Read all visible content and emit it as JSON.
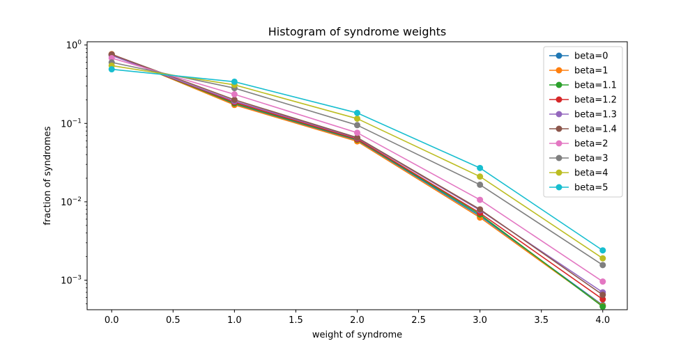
{
  "chart_data": {
    "type": "line",
    "title": "Histogram of syndrome weights",
    "xlabel": "weight of syndrome",
    "ylabel": "fraction of syndromes",
    "y_scale": "log",
    "xlim": [
      -0.2,
      4.2
    ],
    "ylim": [
      0.00042,
      1.1
    ],
    "grid": false,
    "legend_position": "top-right",
    "x_ticks": [
      0.0,
      0.5,
      1.0,
      1.5,
      2.0,
      2.5,
      3.0,
      3.5,
      4.0
    ],
    "x_tick_labels": [
      "0.0",
      "0.5",
      "1.0",
      "1.5",
      "2.0",
      "2.5",
      "3.0",
      "3.5",
      "4.0"
    ],
    "y_ticks": [
      {
        "value": 0.001,
        "base": "10",
        "exp": "−3"
      },
      {
        "value": 0.01,
        "base": "10",
        "exp": "−2"
      },
      {
        "value": 0.1,
        "base": "10",
        "exp": "−1"
      },
      {
        "value": 1,
        "base": "10",
        "exp": "0"
      }
    ],
    "x": [
      0,
      1,
      2,
      3,
      4
    ],
    "series": [
      {
        "name": "beta=0",
        "color": "#1f77b4",
        "values": [
          0.76,
          0.175,
          0.061,
          0.0066,
          0.00048
        ]
      },
      {
        "name": "beta=1",
        "color": "#ff7f0e",
        "values": [
          0.765,
          0.172,
          0.059,
          0.0063,
          0.00047
        ]
      },
      {
        "name": "beta=1.1",
        "color": "#2ca02c",
        "values": [
          0.755,
          0.18,
          0.062,
          0.0069,
          0.00046
        ]
      },
      {
        "name": "beta=1.2",
        "color": "#d62728",
        "values": [
          0.745,
          0.186,
          0.063,
          0.0072,
          0.00057
        ]
      },
      {
        "name": "beta=1.3",
        "color": "#9467bd",
        "values": [
          0.735,
          0.192,
          0.065,
          0.0078,
          0.0007
        ]
      },
      {
        "name": "beta=1.4",
        "color": "#8c564b",
        "values": [
          0.76,
          0.2,
          0.066,
          0.008,
          0.00065
        ]
      },
      {
        "name": "beta=2",
        "color": "#e377c2",
        "values": [
          0.68,
          0.235,
          0.076,
          0.0106,
          0.00096
        ]
      },
      {
        "name": "beta=3",
        "color": "#7f7f7f",
        "values": [
          0.6,
          0.282,
          0.095,
          0.0165,
          0.00156
        ]
      },
      {
        "name": "beta=4",
        "color": "#bcbd22",
        "values": [
          0.545,
          0.31,
          0.115,
          0.021,
          0.0019
        ]
      },
      {
        "name": "beta=5",
        "color": "#17becf",
        "values": [
          0.49,
          0.34,
          0.136,
          0.027,
          0.0024
        ]
      }
    ]
  }
}
